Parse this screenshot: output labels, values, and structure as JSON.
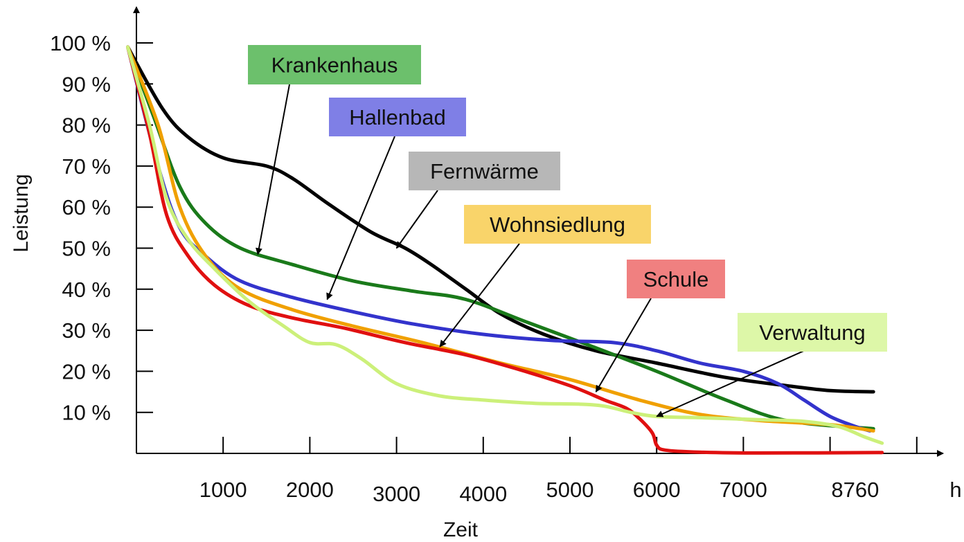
{
  "chart_data": {
    "type": "line",
    "xlabel": "Zeit",
    "ylabel": "Leistung",
    "x_unit_label": "h",
    "xlim": [
      0,
      9600
    ],
    "ylim": [
      0,
      100
    ],
    "x_ticks": [
      1000,
      2000,
      3000,
      4000,
      5000,
      6000,
      7000,
      8760
    ],
    "x_tick_labels": [
      "1000",
      "2000",
      "3000",
      "4000",
      "5000",
      "6000",
      "7000",
      "8760"
    ],
    "x_gridmarks": [
      1000,
      2000,
      3000,
      4000,
      5000,
      6000,
      7000,
      8000,
      9000
    ],
    "y_ticks": [
      10,
      20,
      30,
      40,
      50,
      60,
      70,
      80,
      90,
      100
    ],
    "y_tick_labels": [
      "10 %",
      "20 %",
      "30 %",
      "40 %",
      "50 %",
      "60 %",
      "70 %",
      "80 %",
      "90 %",
      "100 %"
    ],
    "grid": false,
    "legend": "callouts",
    "series": [
      {
        "name": "Fernwärme",
        "color": "#000000",
        "points": [
          [
            -100,
            99
          ],
          [
            300,
            84
          ],
          [
            600,
            77
          ],
          [
            1000,
            72
          ],
          [
            1500,
            70
          ],
          [
            1800,
            67
          ],
          [
            2200,
            61
          ],
          [
            2700,
            54
          ],
          [
            3100,
            50
          ],
          [
            3400,
            46
          ],
          [
            3800,
            40
          ],
          [
            4200,
            34
          ],
          [
            4700,
            29
          ],
          [
            5300,
            25
          ],
          [
            6000,
            22
          ],
          [
            6800,
            18.5
          ],
          [
            7500,
            16.5
          ],
          [
            8000,
            15.3
          ],
          [
            8500,
            15
          ]
        ]
      },
      {
        "name": "Krankenhaus",
        "color": "#1a7a1a",
        "points": [
          [
            -100,
            99
          ],
          [
            200,
            82
          ],
          [
            500,
            65
          ],
          [
            800,
            56
          ],
          [
            1200,
            50
          ],
          [
            1800,
            46
          ],
          [
            2500,
            42
          ],
          [
            3200,
            39.5
          ],
          [
            3800,
            37.5
          ],
          [
            4500,
            32
          ],
          [
            5200,
            26.5
          ],
          [
            6000,
            20
          ],
          [
            6800,
            13
          ],
          [
            7500,
            8
          ],
          [
            8500,
            6
          ]
        ]
      },
      {
        "name": "Hallenbad",
        "color": "#3333cc",
        "points": [
          [
            -100,
            99
          ],
          [
            250,
            70
          ],
          [
            500,
            55
          ],
          [
            800,
            48
          ],
          [
            1200,
            42
          ],
          [
            1800,
            38
          ],
          [
            2500,
            34.5
          ],
          [
            3200,
            31.5
          ],
          [
            4000,
            29
          ],
          [
            4800,
            27.5
          ],
          [
            5500,
            27
          ],
          [
            6000,
            25
          ],
          [
            6500,
            22
          ],
          [
            7000,
            20
          ],
          [
            7400,
            17
          ],
          [
            7700,
            13
          ],
          [
            8000,
            9
          ],
          [
            8300,
            6.5
          ],
          [
            8460,
            5.5
          ]
        ]
      },
      {
        "name": "Wohnsiedlung",
        "color": "#f0a000",
        "points": [
          [
            -100,
            99
          ],
          [
            250,
            80
          ],
          [
            500,
            60
          ],
          [
            800,
            48
          ],
          [
            1200,
            40
          ],
          [
            1800,
            35
          ],
          [
            2500,
            31
          ],
          [
            3300,
            27
          ],
          [
            4200,
            22
          ],
          [
            5000,
            18
          ],
          [
            5800,
            13
          ],
          [
            6500,
            9.5
          ],
          [
            7200,
            8
          ],
          [
            8000,
            7
          ],
          [
            8500,
            5.5
          ]
        ]
      },
      {
        "name": "Schule",
        "color": "#e01010",
        "points": [
          [
            -100,
            99
          ],
          [
            150,
            78
          ],
          [
            350,
            58
          ],
          [
            600,
            48
          ],
          [
            900,
            41
          ],
          [
            1300,
            36
          ],
          [
            1800,
            33
          ],
          [
            2400,
            30.5
          ],
          [
            3100,
            27
          ],
          [
            3800,
            24
          ],
          [
            4400,
            20.5
          ],
          [
            5000,
            16.5
          ],
          [
            5400,
            13
          ],
          [
            5650,
            11
          ],
          [
            5800,
            8.5
          ],
          [
            5950,
            5
          ],
          [
            6000,
            2
          ],
          [
            6100,
            0.8
          ],
          [
            6500,
            0.3
          ],
          [
            7200,
            0.1
          ],
          [
            8600,
            0.2
          ]
        ]
      },
      {
        "name": "Verwaltung",
        "color": "#ccf07a",
        "points": [
          [
            -100,
            99
          ],
          [
            150,
            80
          ],
          [
            350,
            62
          ],
          [
            600,
            52
          ],
          [
            900,
            45
          ],
          [
            1300,
            37
          ],
          [
            1700,
            31
          ],
          [
            2000,
            27
          ],
          [
            2300,
            26.5
          ],
          [
            2600,
            23
          ],
          [
            3000,
            17
          ],
          [
            3500,
            14
          ],
          [
            4000,
            13
          ],
          [
            4600,
            12.2
          ],
          [
            5100,
            12
          ],
          [
            5400,
            11.5
          ],
          [
            5700,
            10
          ],
          [
            6000,
            9
          ],
          [
            6500,
            8.7
          ],
          [
            7200,
            8.2
          ],
          [
            7700,
            7.8
          ],
          [
            8100,
            6.5
          ],
          [
            8400,
            4
          ],
          [
            8600,
            2.5
          ]
        ]
      }
    ],
    "callouts": [
      {
        "label": "Krankenhaus",
        "bg": "#6cc06c",
        "target": [
          1400,
          48.5
        ]
      },
      {
        "label": "Hallenbad",
        "bg": "#7f7fe6",
        "target": [
          2200,
          37.5
        ]
      },
      {
        "label": "Fernwärme",
        "bg": "#b7b7b7",
        "target": [
          3000,
          50
        ]
      },
      {
        "label": "Wohnsiedlung",
        "bg": "#f9d46a",
        "target": [
          3500,
          26
        ]
      },
      {
        "label": "Schule",
        "bg": "#f08080",
        "target": [
          5300,
          15
        ]
      },
      {
        "label": "Verwaltung",
        "bg": "#ddf7a8",
        "target": [
          6000,
          9
        ]
      }
    ]
  }
}
